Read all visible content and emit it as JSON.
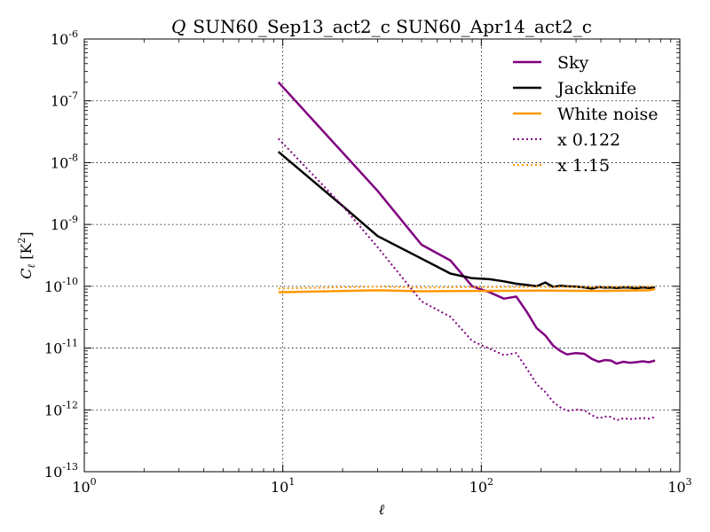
{
  "chart_data": {
    "type": "line",
    "title_prefix": "Q",
    "title": "SUN60_Sep13_act2_c SUN60_Apr14_act2_c",
    "xlabel": "ℓ",
    "ylabel": "C_ℓ [K²]",
    "x_scale": "log",
    "y_scale": "log",
    "xlim": [
      1,
      1000
    ],
    "ylim": [
      1e-13,
      1e-06
    ],
    "x_ticks": [
      {
        "base": "10",
        "exp": "0"
      },
      {
        "base": "10",
        "exp": "1"
      },
      {
        "base": "10",
        "exp": "2"
      },
      {
        "base": "10",
        "exp": "3"
      }
    ],
    "y_ticks": [
      {
        "base": "10",
        "exp": "-13"
      },
      {
        "base": "10",
        "exp": "-12"
      },
      {
        "base": "10",
        "exp": "-11"
      },
      {
        "base": "10",
        "exp": "-10"
      },
      {
        "base": "10",
        "exp": "-9"
      },
      {
        "base": "10",
        "exp": "-8"
      },
      {
        "base": "10",
        "exp": "-7"
      },
      {
        "base": "10",
        "exp": "-6"
      }
    ],
    "grid": true,
    "legend_position": "top-right",
    "series": [
      {
        "name": "Sky",
        "color": "#800080",
        "style": "solid",
        "x": [
          9.5,
          30,
          50,
          70,
          90,
          110,
          130,
          150,
          170,
          190,
          210,
          230,
          250,
          270,
          300,
          330,
          360,
          390,
          420,
          450,
          480,
          520,
          560,
          600,
          650,
          700,
          750
        ],
        "y": [
          2e-07,
          3.5e-09,
          4.7e-10,
          2.6e-10,
          1e-10,
          8e-11,
          6.3e-11,
          6.8e-11,
          3.8e-11,
          2.1e-11,
          1.6e-11,
          1.1e-11,
          9e-12,
          7.9e-12,
          8.3e-12,
          8.1e-12,
          6.7e-12,
          6e-12,
          6.4e-12,
          6.3e-12,
          5.6e-12,
          6e-12,
          5.8e-12,
          5.9e-12,
          6.1e-12,
          5.9e-12,
          6.3e-12
        ]
      },
      {
        "name": "Jackknife",
        "color": "#000000",
        "style": "solid",
        "x": [
          9.5,
          20,
          30,
          50,
          70,
          90,
          110,
          130,
          150,
          170,
          190,
          210,
          230,
          250,
          270,
          300,
          330,
          360,
          390,
          420,
          450,
          480,
          520,
          560,
          600,
          650,
          700,
          750
        ],
        "y": [
          1.5e-08,
          2e-09,
          6.5e-10,
          2.8e-10,
          1.6e-10,
          1.35e-10,
          1.3e-10,
          1.2e-10,
          1.1e-10,
          1.05e-10,
          1e-10,
          1.15e-10,
          9.8e-11,
          1.02e-10,
          1e-10,
          9.9e-11,
          9.6e-11,
          9.2e-11,
          9.7e-11,
          9.5e-11,
          9.6e-11,
          9.4e-11,
          9.6e-11,
          9.5e-11,
          9.3e-11,
          9.6e-11,
          9.4e-11,
          9.5e-11
        ]
      },
      {
        "name": "White noise",
        "color": "#ff9900",
        "style": "solid",
        "x": [
          9.5,
          30,
          50,
          100,
          200,
          400,
          700,
          750
        ],
        "y": [
          8e-11,
          8.6e-11,
          8.3e-11,
          8.4e-11,
          8.5e-11,
          8.4e-11,
          8.6e-11,
          9e-11
        ]
      },
      {
        "name": "x 0.122",
        "color": "#800080",
        "style": "dotted",
        "x": [
          9.5,
          20,
          30,
          50,
          70,
          90,
          110,
          130,
          150,
          170,
          190,
          210,
          230,
          250,
          270,
          300,
          330,
          360,
          390,
          420,
          450,
          480,
          520,
          560,
          600,
          650,
          700,
          750
        ],
        "y": [
          2.45e-08,
          2e-09,
          4.3e-10,
          5.7e-11,
          3.2e-11,
          1.3e-11,
          9.8e-12,
          7.7e-12,
          8.3e-12,
          4.6e-12,
          2.6e-12,
          1.95e-12,
          1.35e-12,
          1.1e-12,
          9.6e-13,
          1.01e-12,
          9.9e-13,
          8.2e-13,
          7.3e-13,
          7.8e-13,
          7.7e-13,
          6.8e-13,
          7.3e-13,
          7.1e-13,
          7.2e-13,
          7.4e-13,
          7.2e-13,
          7.7e-13
        ]
      },
      {
        "name": "x 1.15",
        "color": "#ff9900",
        "style": "dotted",
        "x": [
          9.5,
          30,
          50,
          100,
          200,
          400,
          700,
          750
        ],
        "y": [
          9.2e-11,
          9.9e-11,
          9.5e-11,
          9.7e-11,
          9.8e-11,
          9.7e-11,
          9.9e-11,
          1.03e-10
        ]
      }
    ]
  }
}
